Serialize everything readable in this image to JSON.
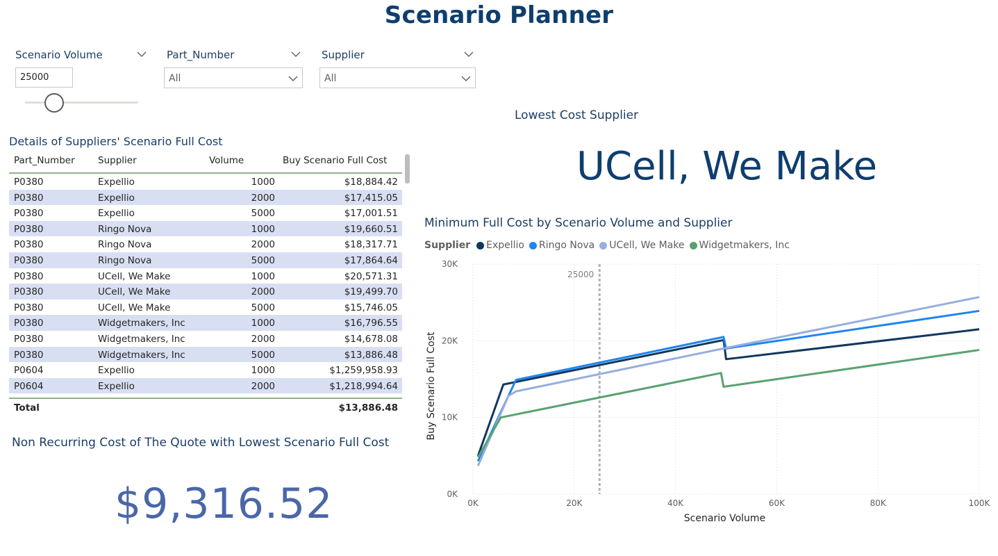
{
  "page": {
    "title": "Scenario Planner"
  },
  "slicers": {
    "volume": {
      "title": "Scenario Volume",
      "value": "25000"
    },
    "part_number": {
      "title": "Part_Number",
      "value": "All"
    },
    "supplier": {
      "title": "Supplier",
      "value": "All"
    }
  },
  "details": {
    "title": "Details of Suppliers' Scenario Full Cost",
    "headers": [
      "Part_Number",
      "Supplier",
      "Volume",
      "Buy Scenario Full Cost"
    ],
    "rows": [
      [
        "P0380",
        "Expellio",
        "1000",
        "$18,884.42"
      ],
      [
        "P0380",
        "Expellio",
        "2000",
        "$17,415.05"
      ],
      [
        "P0380",
        "Expellio",
        "5000",
        "$17,001.51"
      ],
      [
        "P0380",
        "Ringo Nova",
        "1000",
        "$19,660.51"
      ],
      [
        "P0380",
        "Ringo Nova",
        "2000",
        "$18,317.71"
      ],
      [
        "P0380",
        "Ringo Nova",
        "5000",
        "$17,864.64"
      ],
      [
        "P0380",
        "UCell, We Make",
        "1000",
        "$20,571.31"
      ],
      [
        "P0380",
        "UCell, We Make",
        "2000",
        "$19,499.70"
      ],
      [
        "P0380",
        "UCell, We Make",
        "5000",
        "$15,746.05"
      ],
      [
        "P0380",
        "Widgetmakers, Inc",
        "1000",
        "$16,796.55"
      ],
      [
        "P0380",
        "Widgetmakers, Inc",
        "2000",
        "$14,678.08"
      ],
      [
        "P0380",
        "Widgetmakers, Inc",
        "5000",
        "$13,886.48"
      ],
      [
        "P0604",
        "Expellio",
        "1000",
        "$1,259,958.93"
      ],
      [
        "P0604",
        "Expellio",
        "2000",
        "$1,218,994.64"
      ]
    ],
    "total_label": "Total",
    "total_value": "$13,886.48"
  },
  "nonrecurring": {
    "title": "Non Recurring Cost of The Quote with Lowest Scenario Full Cost",
    "value": "$9,316.52"
  },
  "lowest": {
    "title": "Lowest Cost Supplier",
    "value": "UCell, We Make"
  },
  "chart_title": "Minimum Full Cost by Scenario Volume and Supplier",
  "chart_data": {
    "type": "line",
    "title": "Minimum Full Cost by Scenario Volume and Supplier",
    "legend_title": "Supplier",
    "legend_position": "top-left",
    "xlabel": "Scenario Volume",
    "ylabel": "Buy Scenario Full Cost",
    "xlim": [
      0,
      100000
    ],
    "ylim": [
      0,
      30000
    ],
    "x_ticks": [
      "0K",
      "20K",
      "40K",
      "60K",
      "80K",
      "100K"
    ],
    "x_tick_values": [
      0,
      20000,
      40000,
      60000,
      80000,
      100000
    ],
    "y_ticks": [
      "0K",
      "10K",
      "20K",
      "30K"
    ],
    "y_tick_values": [
      0,
      10000,
      20000,
      30000
    ],
    "grid": true,
    "reference_line": {
      "x": 25000,
      "label": "25000",
      "color": "#b3b3b3"
    },
    "series": [
      {
        "name": "Expellio",
        "color": "#12375f",
        "x": [
          1000,
          6000,
          49500,
          50000,
          100000
        ],
        "y": [
          5000,
          14300,
          20100,
          17600,
          21500
        ]
      },
      {
        "name": "Ringo Nova",
        "color": "#1f85f0",
        "x": [
          1000,
          5000,
          8500,
          49500,
          50000,
          100000
        ],
        "y": [
          4300,
          10000,
          14900,
          20500,
          19000,
          23900
        ]
      },
      {
        "name": "UCell, We Make",
        "color": "#96aee0",
        "x": [
          1000,
          7000,
          8500,
          49500,
          100000
        ],
        "y": [
          3700,
          12800,
          13400,
          19000,
          25700
        ]
      },
      {
        "name": "Widgetmakers, Inc",
        "color": "#5aa271",
        "x": [
          1000,
          5500,
          49000,
          49500,
          100000
        ],
        "y": [
          4800,
          10000,
          15800,
          14000,
          18800
        ]
      }
    ]
  }
}
